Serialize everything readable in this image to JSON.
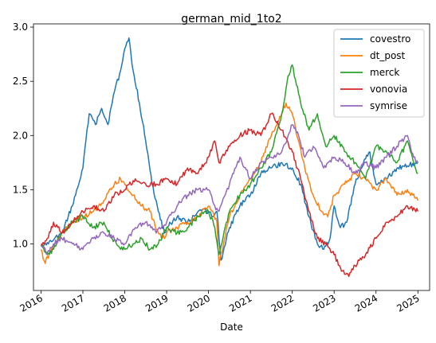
{
  "chart_data": {
    "type": "line",
    "title": "german_mid_1to2",
    "xlabel": "Date",
    "ylabel": "",
    "xlim": [
      2015.82,
      2025.28
    ],
    "ylim": [
      0.57,
      3.03
    ],
    "xticks": [
      2016,
      2017,
      2018,
      2019,
      2020,
      2021,
      2022,
      2023,
      2024,
      2025
    ],
    "xtick_labels": [
      "2016",
      "2017",
      "2018",
      "2019",
      "2020",
      "2021",
      "2022",
      "2023",
      "2024",
      "2025"
    ],
    "yticks": [
      1.0,
      1.5,
      2.0,
      2.5,
      3.0
    ],
    "ytick_labels": [
      "1.0",
      "1.5",
      "2.0",
      "2.5",
      "3.0"
    ],
    "legend_position": "upper right",
    "grid": false,
    "series": [
      {
        "name": "covestro",
        "color": "#1f77b4",
        "x": [
          2016.0,
          2016.25,
          2016.5,
          2016.75,
          2017.0,
          2017.15,
          2017.3,
          2017.45,
          2017.6,
          2017.75,
          2017.9,
          2018.0,
          2018.1,
          2018.2,
          2018.35,
          2018.5,
          2018.65,
          2018.8,
          2018.95,
          2019.0,
          2019.25,
          2019.5,
          2019.75,
          2020.0,
          2020.1,
          2020.2,
          2020.3,
          2020.5,
          2020.75,
          2021.0,
          2021.25,
          2021.5,
          2021.75,
          2022.0,
          2022.2,
          2022.4,
          2022.6,
          2022.75,
          2022.9,
          2023.0,
          2023.15,
          2023.3,
          2023.5,
          2023.7,
          2023.85,
          2024.0,
          2024.25,
          2024.5,
          2024.75,
          2025.0
        ],
        "y": [
          0.98,
          1.02,
          1.1,
          1.35,
          1.7,
          2.2,
          2.1,
          2.25,
          2.1,
          2.4,
          2.6,
          2.8,
          2.9,
          2.6,
          2.3,
          1.95,
          1.55,
          1.3,
          1.1,
          1.15,
          1.25,
          1.2,
          1.3,
          1.3,
          1.25,
          1.3,
          0.85,
          1.15,
          1.35,
          1.45,
          1.65,
          1.7,
          1.75,
          1.7,
          1.55,
          1.25,
          1.0,
          0.95,
          1.05,
          1.35,
          1.15,
          1.2,
          1.55,
          1.75,
          1.85,
          1.55,
          1.6,
          1.7,
          1.72,
          1.75
        ]
      },
      {
        "name": "dt_post",
        "color": "#ff7f0e",
        "x": [
          2016.0,
          2016.1,
          2016.25,
          2016.5,
          2016.75,
          2017.0,
          2017.25,
          2017.5,
          2017.75,
          2017.9,
          2018.0,
          2018.2,
          2018.4,
          2018.6,
          2018.8,
          2018.95,
          2019.0,
          2019.25,
          2019.5,
          2019.75,
          2020.0,
          2020.1,
          2020.2,
          2020.25,
          2020.5,
          2020.75,
          2021.0,
          2021.25,
          2021.5,
          2021.75,
          2021.85,
          2022.0,
          2022.15,
          2022.3,
          2022.5,
          2022.7,
          2022.85,
          2023.0,
          2023.25,
          2023.5,
          2023.75,
          2024.0,
          2024.25,
          2024.5,
          2024.75,
          2025.0
        ],
        "y": [
          0.95,
          0.82,
          0.95,
          1.1,
          1.2,
          1.25,
          1.3,
          1.4,
          1.55,
          1.6,
          1.55,
          1.45,
          1.35,
          1.3,
          1.1,
          1.05,
          1.1,
          1.15,
          1.2,
          1.25,
          1.35,
          1.3,
          1.2,
          0.8,
          1.25,
          1.45,
          1.6,
          1.75,
          2.0,
          2.2,
          2.3,
          2.2,
          1.95,
          1.7,
          1.45,
          1.3,
          1.25,
          1.45,
          1.55,
          1.65,
          1.6,
          1.5,
          1.6,
          1.45,
          1.5,
          1.4
        ]
      },
      {
        "name": "merck",
        "color": "#2ca02c",
        "x": [
          2016.0,
          2016.15,
          2016.3,
          2016.5,
          2016.75,
          2017.0,
          2017.25,
          2017.5,
          2017.7,
          2017.9,
          2018.0,
          2018.2,
          2018.4,
          2018.6,
          2018.8,
          2019.0,
          2019.25,
          2019.5,
          2019.75,
          2020.0,
          2020.15,
          2020.25,
          2020.5,
          2020.75,
          2021.0,
          2021.25,
          2021.5,
          2021.75,
          2021.9,
          2022.0,
          2022.2,
          2022.4,
          2022.6,
          2022.8,
          2023.0,
          2023.25,
          2023.5,
          2023.75,
          2024.0,
          2024.25,
          2024.5,
          2024.75,
          2024.9,
          2025.0
        ],
        "y": [
          1.0,
          0.9,
          0.95,
          1.1,
          1.2,
          1.25,
          1.15,
          1.2,
          1.05,
          0.95,
          0.95,
          1.0,
          1.05,
          0.95,
          1.0,
          1.15,
          1.1,
          1.15,
          1.25,
          1.3,
          1.15,
          0.9,
          1.3,
          1.45,
          1.55,
          1.7,
          1.85,
          2.2,
          2.55,
          2.65,
          2.3,
          2.05,
          2.2,
          1.9,
          2.0,
          1.85,
          1.75,
          1.6,
          1.9,
          1.85,
          1.75,
          1.95,
          1.75,
          1.65
        ]
      },
      {
        "name": "vonovia",
        "color": "#d62728",
        "x": [
          2016.0,
          2016.15,
          2016.3,
          2016.5,
          2016.75,
          2017.0,
          2017.25,
          2017.5,
          2017.75,
          2018.0,
          2018.25,
          2018.5,
          2018.75,
          2019.0,
          2019.25,
          2019.5,
          2019.75,
          2020.0,
          2020.15,
          2020.25,
          2020.5,
          2020.75,
          2021.0,
          2021.25,
          2021.5,
          2021.75,
          2022.0,
          2022.2,
          2022.4,
          2022.6,
          2022.8,
          2023.0,
          2023.2,
          2023.35,
          2023.5,
          2023.75,
          2024.0,
          2024.25,
          2024.5,
          2024.75,
          2025.0
        ],
        "y": [
          0.98,
          1.05,
          1.2,
          1.1,
          1.2,
          1.3,
          1.35,
          1.3,
          1.45,
          1.5,
          1.6,
          1.55,
          1.55,
          1.6,
          1.55,
          1.7,
          1.65,
          1.8,
          1.95,
          1.75,
          1.9,
          2.0,
          2.05,
          2.0,
          2.2,
          2.05,
          1.85,
          1.6,
          1.3,
          1.05,
          1.0,
          0.9,
          0.75,
          0.7,
          0.8,
          0.9,
          1.05,
          1.2,
          1.25,
          1.35,
          1.3
        ]
      },
      {
        "name": "symrise",
        "color": "#9467bd",
        "x": [
          2016.0,
          2016.15,
          2016.3,
          2016.5,
          2016.75,
          2017.0,
          2017.25,
          2017.5,
          2017.75,
          2018.0,
          2018.25,
          2018.5,
          2018.75,
          2019.0,
          2019.25,
          2019.5,
          2019.75,
          2020.0,
          2020.15,
          2020.25,
          2020.5,
          2020.75,
          2021.0,
          2021.25,
          2021.5,
          2021.75,
          2022.0,
          2022.15,
          2022.3,
          2022.5,
          2022.75,
          2023.0,
          2023.25,
          2023.5,
          2023.75,
          2024.0,
          2024.25,
          2024.5,
          2024.75,
          2024.9,
          2025.0
        ],
        "y": [
          0.98,
          0.92,
          1.0,
          1.05,
          1.0,
          0.95,
          1.05,
          1.1,
          1.05,
          1.0,
          1.15,
          1.2,
          1.1,
          1.2,
          1.35,
          1.45,
          1.5,
          1.5,
          1.35,
          1.3,
          1.55,
          1.8,
          1.6,
          1.75,
          1.8,
          1.85,
          2.1,
          2.0,
          1.8,
          1.9,
          1.7,
          1.8,
          1.75,
          1.65,
          1.75,
          1.7,
          1.8,
          1.9,
          2.0,
          1.8,
          1.75
        ]
      }
    ]
  }
}
